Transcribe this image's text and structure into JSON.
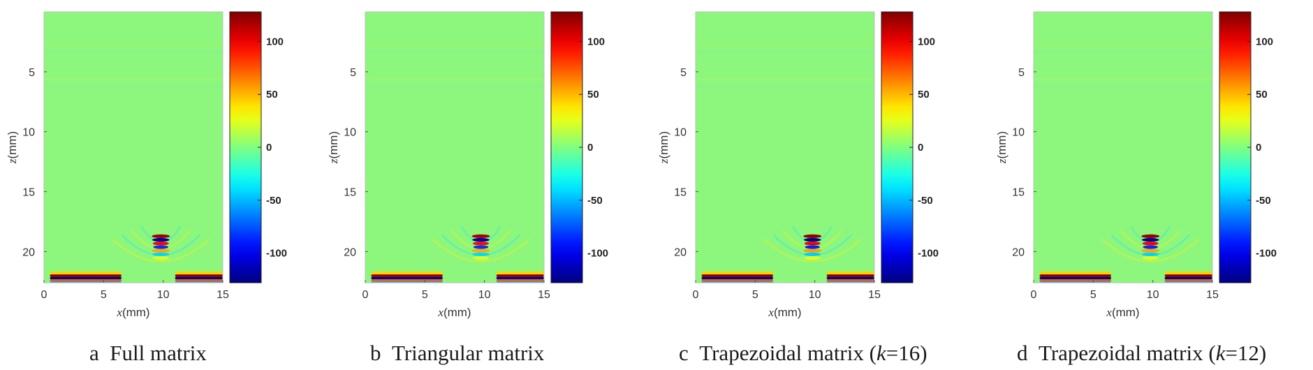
{
  "figure": {
    "colorbar_colors": [
      "#00008f",
      "#0000ff",
      "#00ffff",
      "#80ff80",
      "#ffff00",
      "#ff0000",
      "#800000"
    ],
    "background_color": "#8cf77c"
  },
  "chart_data": [
    {
      "type": "heatmap",
      "panel_letter": "a",
      "caption": "Full matrix",
      "xlabel_var": "x",
      "xlabel_unit": "(mm)",
      "ylabel_var": "z",
      "ylabel_unit": "(mm)",
      "xlim": [
        0,
        15
      ],
      "ylim": [
        22.6,
        0
      ],
      "xticks": [
        "0",
        "5",
        "10",
        "15"
      ],
      "yticks": [
        "5",
        "10",
        "15",
        "20"
      ],
      "colorbar_range": [
        -128,
        128
      ],
      "colorbar_ticks": [
        "100",
        "50",
        "0",
        "-50",
        "-100"
      ],
      "features": [
        {
          "type": "focus",
          "x": 9.8,
          "z": 19.3,
          "amplitude": 120
        },
        {
          "type": "backwall",
          "x_start": 0.5,
          "x_end": 6.5,
          "z": 22.2,
          "amplitude": 125
        },
        {
          "type": "backwall",
          "x_start": 11.0,
          "x_end": 15.0,
          "z": 22.2,
          "amplitude": 125
        }
      ]
    },
    {
      "type": "heatmap",
      "panel_letter": "b",
      "caption": "Triangular matrix",
      "xlabel_var": "x",
      "xlabel_unit": "(mm)",
      "ylabel_var": "z",
      "ylabel_unit": "(mm)",
      "xlim": [
        0,
        15
      ],
      "ylim": [
        22.6,
        0
      ],
      "xticks": [
        "0",
        "5",
        "10",
        "15"
      ],
      "yticks": [
        "5",
        "10",
        "15",
        "20"
      ],
      "colorbar_range": [
        -128,
        128
      ],
      "colorbar_ticks": [
        "100",
        "50",
        "0",
        "-50",
        "-100"
      ],
      "features": [
        {
          "type": "focus",
          "x": 9.7,
          "z": 19.3,
          "amplitude": 118
        },
        {
          "type": "backwall",
          "x_start": 0.5,
          "x_end": 6.5,
          "z": 22.2,
          "amplitude": 122
        },
        {
          "type": "backwall",
          "x_start": 11.0,
          "x_end": 15.0,
          "z": 22.2,
          "amplitude": 122
        }
      ]
    },
    {
      "type": "heatmap",
      "panel_letter": "c",
      "caption_prefix": "Trapezoidal matrix (",
      "caption_k": "k",
      "caption_suffix": "=16)",
      "xlabel_var": "x",
      "xlabel_unit": "(mm)",
      "ylabel_var": "z",
      "ylabel_unit": "(mm)",
      "xlim": [
        0,
        15
      ],
      "ylim": [
        22.6,
        0
      ],
      "xticks": [
        "0",
        "5",
        "10",
        "15"
      ],
      "yticks": [
        "5",
        "10",
        "15",
        "20"
      ],
      "colorbar_range": [
        -128,
        128
      ],
      "colorbar_ticks": [
        "100",
        "50",
        "0",
        "-50",
        "-100"
      ],
      "features": [
        {
          "type": "focus",
          "x": 9.8,
          "z": 19.3,
          "amplitude": 125
        },
        {
          "type": "backwall",
          "x_start": 0.5,
          "x_end": 6.5,
          "z": 22.2,
          "amplitude": 125
        },
        {
          "type": "backwall",
          "x_start": 11.0,
          "x_end": 15.0,
          "z": 22.2,
          "amplitude": 125
        }
      ]
    },
    {
      "type": "heatmap",
      "panel_letter": "d",
      "caption_prefix": "Trapezoidal matrix (",
      "caption_k": "k",
      "caption_suffix": "=12)",
      "xlabel_var": "x",
      "xlabel_unit": "(mm)",
      "ylabel_var": "z",
      "ylabel_unit": "(mm)",
      "xlim": [
        0,
        15
      ],
      "ylim": [
        22.6,
        0
      ],
      "xticks": [
        "0",
        "5",
        "10",
        "15"
      ],
      "yticks": [
        "5",
        "10",
        "15",
        "20"
      ],
      "colorbar_range": [
        -128,
        128
      ],
      "colorbar_ticks": [
        "100",
        "50",
        "0",
        "-50",
        "-100"
      ],
      "features": [
        {
          "type": "focus",
          "x": 9.8,
          "z": 19.3,
          "amplitude": 122
        },
        {
          "type": "backwall",
          "x_start": 0.5,
          "x_end": 6.5,
          "z": 22.2,
          "amplitude": 125
        },
        {
          "type": "backwall",
          "x_start": 11.0,
          "x_end": 15.0,
          "z": 22.2,
          "amplitude": 125
        }
      ]
    }
  ]
}
